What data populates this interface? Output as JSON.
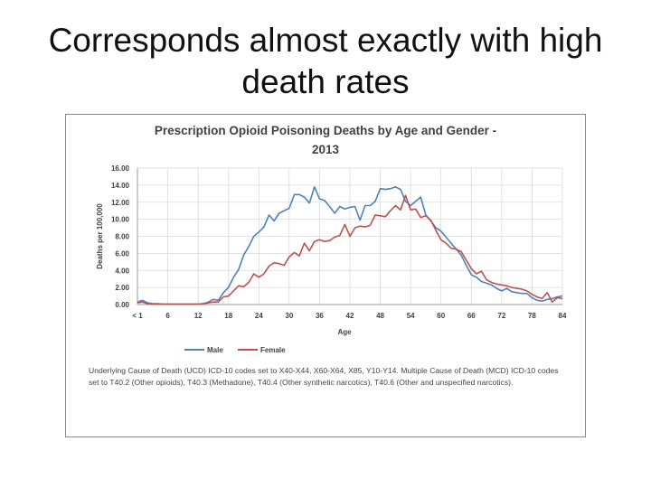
{
  "slide": {
    "title_line1": "Corresponds almost exactly with high",
    "title_line2": "death rates"
  },
  "chart_data": {
    "type": "line",
    "title_line1": "Prescription Opioid Poisoning Deaths by Age and Gender -",
    "title_line2": "2013",
    "xlabel": "Age",
    "ylabel": "Deaths per 100,000",
    "ylim": [
      0,
      16
    ],
    "y_ticks": [
      "0.00",
      "2.00",
      "4.00",
      "6.00",
      "8.00",
      "10.00",
      "12.00",
      "14.00",
      "16.00"
    ],
    "x_tick_labels": [
      "< 1",
      "6",
      "12",
      "18",
      "24",
      "30",
      "36",
      "42",
      "48",
      "54",
      "60",
      "66",
      "72",
      "78",
      "84"
    ],
    "grid": true,
    "legend_position": "bottom-center",
    "x": [
      0,
      1,
      2,
      3,
      4,
      5,
      6,
      7,
      8,
      9,
      10,
      11,
      12,
      13,
      14,
      15,
      16,
      17,
      18,
      19,
      20,
      21,
      22,
      23,
      24,
      25,
      26,
      27,
      28,
      29,
      30,
      31,
      32,
      33,
      34,
      35,
      36,
      37,
      38,
      39,
      40,
      41,
      42,
      43,
      44,
      45,
      46,
      47,
      48,
      49,
      50,
      51,
      52,
      53,
      54,
      55,
      56,
      57,
      58,
      59,
      60,
      61,
      62,
      63,
      64,
      65,
      66,
      67,
      68,
      69,
      70,
      71,
      72,
      73,
      74,
      75,
      76,
      77,
      78,
      79,
      80,
      81,
      82,
      83,
      84
    ],
    "series": [
      {
        "name": "Male",
        "color": "#4f81bd",
        "values": [
          0.3,
          0.5,
          0.2,
          0.1,
          0.1,
          0.05,
          0.05,
          0.05,
          0.05,
          0.05,
          0.05,
          0.05,
          0.05,
          0.1,
          0.3,
          0.6,
          0.5,
          1.4,
          2.0,
          3.2,
          4.1,
          5.8,
          6.8,
          8.0,
          8.5,
          9.1,
          10.5,
          9.8,
          10.7,
          11.0,
          11.3,
          12.9,
          12.9,
          12.6,
          11.9,
          13.8,
          12.4,
          12.2,
          11.5,
          10.7,
          11.5,
          11.2,
          11.4,
          11.5,
          9.9,
          11.6,
          11.6,
          12.1,
          13.6,
          13.5,
          13.6,
          13.8,
          13.5,
          12.1,
          11.6,
          12.1,
          12.6,
          10.5,
          9.8,
          9.0,
          8.6,
          7.9,
          7.2,
          6.5,
          5.8,
          4.6,
          3.5,
          3.2,
          2.7,
          2.5,
          2.3,
          1.9,
          1.6,
          1.9,
          1.5,
          1.4,
          1.3,
          1.3,
          0.8,
          0.5,
          0.4,
          0.6,
          0.7,
          0.9,
          1.0
        ]
      },
      {
        "name": "Female",
        "color": "#c0504d",
        "values": [
          0.2,
          0.3,
          0.1,
          0.05,
          0.05,
          0.05,
          0.05,
          0.05,
          0.05,
          0.05,
          0.05,
          0.05,
          0.05,
          0.1,
          0.2,
          0.3,
          0.3,
          0.9,
          1.0,
          1.6,
          2.2,
          2.1,
          2.6,
          3.6,
          3.2,
          3.6,
          4.5,
          4.9,
          4.8,
          4.6,
          5.6,
          6.1,
          5.7,
          7.2,
          6.3,
          7.4,
          7.6,
          7.4,
          7.5,
          7.9,
          8.1,
          9.4,
          8.0,
          9.0,
          9.2,
          9.1,
          9.3,
          10.5,
          10.4,
          10.3,
          11.0,
          11.6,
          11.1,
          12.8,
          11.1,
          11.2,
          10.2,
          10.4,
          9.9,
          8.7,
          7.6,
          7.2,
          6.6,
          6.5,
          6.2,
          5.2,
          4.2,
          3.6,
          3.9,
          2.9,
          2.6,
          2.4,
          2.3,
          2.2,
          2.0,
          1.9,
          1.8,
          1.6,
          1.2,
          0.9,
          0.7,
          1.4,
          0.3,
          0.8,
          0.7
        ]
      }
    ],
    "footnote": "Underlying Cause of Death (UCD) ICD-10 codes set to X40-X44, X60-X64, X85, Y10-Y14. Multiple Cause of Death (MCD) ICD-10 codes set to T40.2 (Other opioids), T40.3 (Methadone), T40.4 (Other synthetic narcotics), T40.6 (Other and unspecified narcotics)."
  }
}
